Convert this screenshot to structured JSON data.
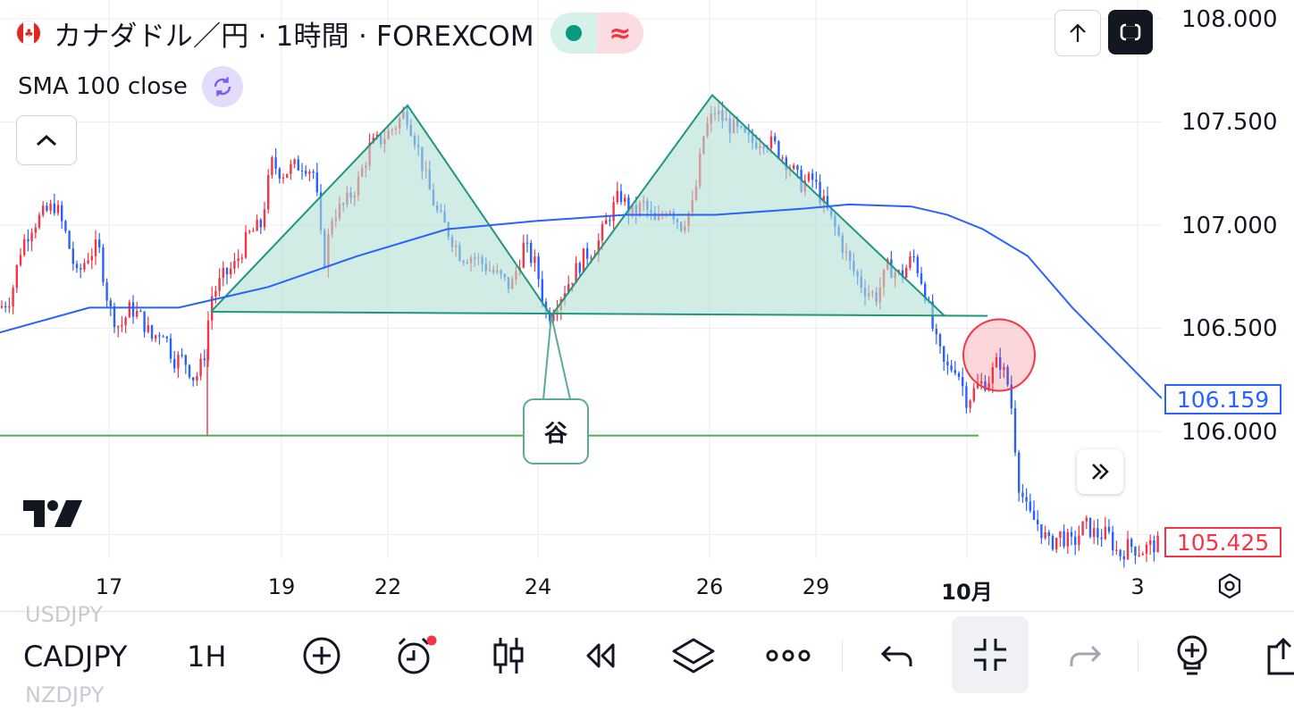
{
  "header": {
    "title": "カナダドル／円 · 1時間 · FOREXCOM",
    "indicator": "SMA 100 close",
    "status_wave": "≈"
  },
  "colors": {
    "up": "#f23645",
    "down": "#2962ff",
    "sma": "#2962ff",
    "pattern_fill": "#b2dfd4",
    "pattern_line": "#1e9680",
    "support": "#4caf50",
    "circle": "#f23645",
    "accent_dark": "#131722"
  },
  "price_axis": {
    "ticks": [
      "108.000",
      "107.500",
      "107.000",
      "106.500",
      "106.000"
    ],
    "sma_tag": "106.159",
    "price_tag": "105.425"
  },
  "time_axis": {
    "ticks": [
      "17",
      "19",
      "22",
      "24",
      "26",
      "29",
      "10月",
      "3"
    ]
  },
  "annotation": {
    "valley_label": "谷"
  },
  "toolbar": {
    "symbol": "CADJPY",
    "interval": "1H",
    "ghost_above": "USDJPY",
    "ghost_below": "NZDJPY"
  },
  "chart_data": {
    "type": "candlestick",
    "symbol": "CADJPY",
    "timeframe": "1H",
    "ylim": [
      105.4,
      108.05
    ],
    "yticks": [
      108.0,
      107.5,
      107.0,
      106.5,
      106.0
    ],
    "close_path": [
      [
        0,
        106.6
      ],
      [
        12,
        106.65
      ],
      [
        24,
        106.9
      ],
      [
        36,
        107.0
      ],
      [
        48,
        107.05
      ],
      [
        62,
        107.1
      ],
      [
        74,
        106.95
      ],
      [
        86,
        106.75
      ],
      [
        98,
        106.85
      ],
      [
        110,
        106.9
      ],
      [
        122,
        106.6
      ],
      [
        134,
        106.5
      ],
      [
        146,
        106.6
      ],
      [
        158,
        106.55
      ],
      [
        170,
        106.45
      ],
      [
        182,
        106.5
      ],
      [
        194,
        106.35
      ],
      [
        206,
        106.35
      ],
      [
        218,
        106.25
      ],
      [
        228,
        106.35
      ],
      [
        236,
        106.65
      ],
      [
        250,
        106.75
      ],
      [
        262,
        106.8
      ],
      [
        278,
        106.95
      ],
      [
        292,
        107.0
      ],
      [
        304,
        107.3
      ],
      [
        316,
        107.25
      ],
      [
        328,
        107.28
      ],
      [
        340,
        107.3
      ],
      [
        352,
        107.25
      ],
      [
        362,
        106.8
      ],
      [
        372,
        107.05
      ],
      [
        386,
        107.1
      ],
      [
        400,
        107.2
      ],
      [
        414,
        107.38
      ],
      [
        428,
        107.42
      ],
      [
        442,
        107.48
      ],
      [
        454,
        107.55
      ],
      [
        466,
        107.4
      ],
      [
        478,
        107.2
      ],
      [
        490,
        107.05
      ],
      [
        504,
        106.95
      ],
      [
        516,
        106.85
      ],
      [
        530,
        106.85
      ],
      [
        544,
        106.8
      ],
      [
        558,
        106.75
      ],
      [
        572,
        106.7
      ],
      [
        586,
        106.9
      ],
      [
        600,
        106.8
      ],
      [
        612,
        106.55
      ],
      [
        626,
        106.65
      ],
      [
        640,
        106.75
      ],
      [
        654,
        106.85
      ],
      [
        668,
        106.9
      ],
      [
        682,
        107.05
      ],
      [
        694,
        107.15
      ],
      [
        706,
        107.05
      ],
      [
        720,
        107.1
      ],
      [
        734,
        107.0
      ],
      [
        748,
        107.1
      ],
      [
        762,
        107.0
      ],
      [
        776,
        107.1
      ],
      [
        788,
        107.45
      ],
      [
        800,
        107.55
      ],
      [
        812,
        107.5
      ],
      [
        826,
        107.45
      ],
      [
        840,
        107.4
      ],
      [
        854,
        107.42
      ],
      [
        868,
        107.38
      ],
      [
        882,
        107.3
      ],
      [
        896,
        107.2
      ],
      [
        910,
        107.22
      ],
      [
        924,
        107.08
      ],
      [
        938,
        106.95
      ],
      [
        952,
        106.8
      ],
      [
        966,
        106.7
      ],
      [
        980,
        106.65
      ],
      [
        994,
        106.8
      ],
      [
        1008,
        106.75
      ],
      [
        1022,
        106.85
      ],
      [
        1034,
        106.7
      ],
      [
        1046,
        106.45
      ],
      [
        1058,
        106.3
      ],
      [
        1070,
        106.32
      ],
      [
        1082,
        106.15
      ],
      [
        1094,
        106.22
      ],
      [
        1106,
        106.25
      ],
      [
        1118,
        106.35
      ],
      [
        1130,
        106.2
      ],
      [
        1140,
        105.75
      ],
      [
        1150,
        105.6
      ],
      [
        1162,
        105.55
      ],
      [
        1174,
        105.45
      ],
      [
        1186,
        105.5
      ],
      [
        1200,
        105.45
      ],
      [
        1214,
        105.55
      ],
      [
        1226,
        105.5
      ],
      [
        1240,
        105.5
      ],
      [
        1252,
        105.4
      ],
      [
        1264,
        105.45
      ],
      [
        1276,
        105.42
      ],
      [
        1290,
        105.45
      ]
    ],
    "sma100": [
      [
        0,
        106.48
      ],
      [
        100,
        106.6
      ],
      [
        200,
        106.6
      ],
      [
        300,
        106.7
      ],
      [
        400,
        106.85
      ],
      [
        500,
        106.98
      ],
      [
        600,
        107.02
      ],
      [
        700,
        107.05
      ],
      [
        800,
        107.05
      ],
      [
        900,
        107.08
      ],
      [
        950,
        107.1
      ],
      [
        1020,
        107.09
      ],
      [
        1060,
        107.05
      ],
      [
        1100,
        106.98
      ],
      [
        1150,
        106.85
      ],
      [
        1200,
        106.6
      ],
      [
        1250,
        106.38
      ],
      [
        1300,
        106.16
      ]
    ],
    "head_shoulders": {
      "points": [
        [
          236,
          106.58
        ],
        [
          456,
          107.58
        ],
        [
          617,
          106.56
        ],
        [
          797,
          107.63
        ],
        [
          1057,
          106.56
        ]
      ],
      "neckline": [
        [
          236,
          106.58
        ],
        [
          1105,
          106.56
        ]
      ],
      "valley_point": [
        617,
        106.56
      ]
    },
    "support_line": {
      "price": 105.98,
      "x_start": 0,
      "x_end": 1095
    },
    "breakout_circle": {
      "x": 1118,
      "price": 106.37
    },
    "last_price": 105.425,
    "sma_last": 106.159
  }
}
